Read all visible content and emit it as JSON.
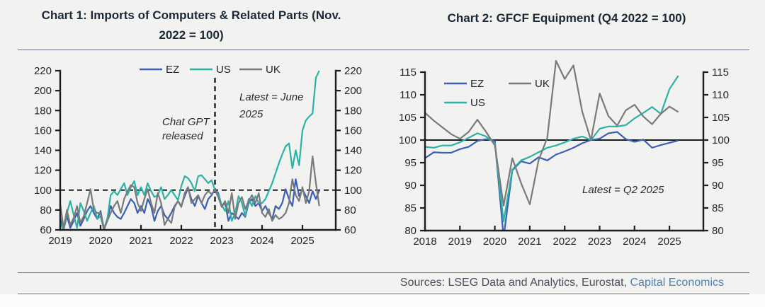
{
  "page": {
    "background": "#f2f2f0"
  },
  "header": {
    "chart1_title": "Chart 1: Imports of Computers & Related Parts (Nov.\n2022 = 100)",
    "chart2_title": "Chart 2: GFCF Equipment (Q4 2022 = 100)"
  },
  "footer": {
    "sources_prefix": "Sources: LSEG Data and Analytics, Eurostat, ",
    "sources_link": "Capital Economics"
  },
  "colors": {
    "EZ": "#3a5fb5",
    "US": "#2cb2a5",
    "UK": "#7a7a7a",
    "axis": "#1a1d21",
    "title": "#1b2836",
    "tick_text": "#1e242b",
    "rule": "#6e6e8a",
    "source_text": "#474f5c",
    "link": "#4d80b2"
  },
  "chart_data": [
    {
      "type": "line",
      "title": "Chart 1: Imports of Computers & Related Parts (Nov. 2022 = 100)",
      "x_unit": "monthly",
      "x_range": "Jan 2019 - Jun 2025",
      "x_tick_labels": [
        "2019",
        "2020",
        "2021",
        "2022",
        "2023",
        "2024",
        "2025"
      ],
      "ylim": [
        60,
        220
      ],
      "y_ticks": [
        60,
        80,
        100,
        120,
        140,
        160,
        180,
        200,
        220
      ],
      "dual_y_axis": true,
      "grid": false,
      "legend_position": "top-center",
      "legend_entries": [
        "EZ",
        "US",
        "UK"
      ],
      "ref_lines": [
        {
          "type": "horizontal",
          "value": 100,
          "style": "dashed"
        },
        {
          "type": "vertical",
          "at": "Nov 2022",
          "style": "dashed"
        }
      ],
      "annotations": [
        "Chat GPT\nreleased",
        "Latest = June\n2025"
      ],
      "series": [
        {
          "name": "EZ",
          "color": "EZ",
          "values": [
            72,
            60,
            74,
            62,
            69,
            77,
            64,
            71,
            79,
            84,
            77,
            71,
            79,
            61,
            71,
            84,
            77,
            73,
            71,
            77,
            84,
            91,
            87,
            77,
            84,
            77,
            91,
            84,
            69,
            79,
            84,
            75,
            71,
            77,
            84,
            89,
            84,
            94,
            102,
            91,
            84,
            94,
            87,
            81,
            91,
            95,
            100,
            97,
            84,
            87,
            69,
            77,
            74,
            71,
            77,
            73,
            87,
            91,
            84,
            87,
            79,
            84,
            77,
            71,
            84,
            81,
            87,
            101,
            91,
            84,
            111,
            94,
            101,
            94,
            87,
            99,
            91,
            100
          ]
        },
        {
          "name": "US",
          "color": "US",
          "values": [
            67,
            60,
            77,
            89,
            75,
            62,
            87,
            79,
            69,
            77,
            84,
            71,
            74,
            60,
            71,
            95,
            99,
            95,
            101,
            107,
            95,
            103,
            109,
            95,
            103,
            95,
            107,
            99,
            93,
            95,
            103,
            91,
            95,
            100,
            95,
            90,
            104,
            114,
            112,
            107,
            99,
            114,
            115,
            111,
            107,
            110,
            100,
            95,
            85,
            79,
            89,
            69,
            77,
            94,
            87,
            74,
            91,
            84,
            94,
            87,
            87,
            91,
            99,
            107,
            117,
            127,
            136,
            144,
            147,
            122,
            140,
            125,
            160,
            170,
            174,
            177,
            213,
            220
          ]
        },
        {
          "name": "UK",
          "color": "UK",
          "values": [
            86,
            62,
            80,
            65,
            72,
            84,
            67,
            74,
            87,
            101,
            80,
            77,
            77,
            60,
            69,
            77,
            84,
            89,
            77,
            91,
            99,
            105,
            103,
            87,
            79,
            91,
            101,
            87,
            77,
            97,
            87,
            65,
            71,
            67,
            83,
            89,
            83,
            97,
            103,
            87,
            91,
            95,
            87,
            95,
            99,
            96,
            100,
            93,
            83,
            89,
            77,
            97,
            71,
            87,
            93,
            81,
            89,
            95,
            87,
            97,
            77,
            73,
            81,
            69,
            75,
            71,
            73,
            77,
            87,
            111,
            95,
            89,
            103,
            87,
            99,
            134,
            107,
            84
          ]
        }
      ]
    },
    {
      "type": "line",
      "title": "Chart 2: GFCF Equipment (Q4 2022 = 100)",
      "x_unit": "quarterly",
      "x_range": "2018 Q1 - 2025 Q2",
      "x_tick_labels": [
        "2018",
        "2019",
        "2020",
        "2021",
        "2022",
        "2023",
        "2024",
        "2025"
      ],
      "ylim": [
        80,
        115
      ],
      "y_ticks": [
        80,
        85,
        90,
        95,
        100,
        105,
        110,
        115
      ],
      "dual_y_axis": true,
      "grid": false,
      "legend_position": "top-left",
      "legend_entries": [
        "EZ",
        "UK",
        "US"
      ],
      "ref_lines": [
        {
          "type": "horizontal",
          "value": 100,
          "style": "solid"
        }
      ],
      "annotations": [
        "Latest = Q2 2025"
      ],
      "series": [
        {
          "name": "EZ",
          "color": "EZ",
          "values": [
            96,
            97.3,
            97.2,
            97.2,
            98,
            98.5,
            99.8,
            100.2,
            99.8,
            78.5,
            93.3,
            95.3,
            94.8,
            96.2,
            95.5,
            96.8,
            97.5,
            98.3,
            99.3,
            100,
            100.3,
            101.5,
            101.8,
            100.2,
            99.6,
            100.1,
            98.3,
            98.9,
            99.4,
            99.9
          ]
        },
        {
          "name": "US",
          "color": "US",
          "values": [
            98.5,
            98.3,
            98.8,
            98.8,
            99.5,
            100.5,
            101.5,
            100.8,
            99.3,
            82,
            93.5,
            95.5,
            96.3,
            97.3,
            98.3,
            98.8,
            99.5,
            100.3,
            100.8,
            100,
            102.5,
            103,
            103,
            103.3,
            104.8,
            106,
            107.3,
            105.8,
            111.3,
            114.2
          ]
        },
        {
          "name": "UK",
          "color": "UK",
          "values": [
            106,
            104.3,
            102.8,
            101.3,
            100.3,
            101.8,
            104.5,
            101.8,
            98.8,
            85.5,
            96,
            90.5,
            85.8,
            95.5,
            100.5,
            117.5,
            113.5,
            116.5,
            106.3,
            100,
            110.3,
            105.3,
            103.2,
            106.6,
            107.8,
            105.2,
            103.5,
            105.8,
            107.4,
            106.2
          ]
        }
      ]
    }
  ]
}
